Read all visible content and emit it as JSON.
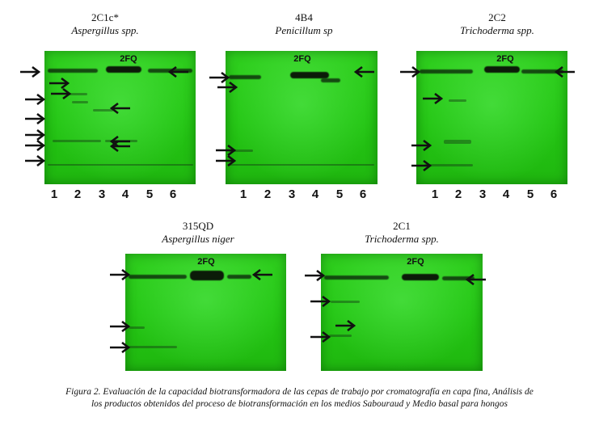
{
  "panels": [
    {
      "code": "2C1c*",
      "organism": "Aspergillus spp.",
      "tag": "2FQ",
      "lanes": [
        "1",
        "2",
        "3",
        "4",
        "5",
        "6"
      ]
    },
    {
      "code": "4B4",
      "organism": "Penicillum sp",
      "tag": "2FQ",
      "lanes": [
        "1",
        "2",
        "3",
        "4",
        "5",
        "6"
      ]
    },
    {
      "code": "2C2",
      "organism": "Trichoderma spp.",
      "tag": "2FQ",
      "lanes": [
        "1",
        "2",
        "3",
        "4",
        "5",
        "6"
      ]
    },
    {
      "code": "315QD",
      "organism": "Aspergillus niger",
      "tag": "2FQ"
    },
    {
      "code": "2C1",
      "organism": "Trichoderma spp.",
      "tag": "2FQ"
    }
  ],
  "caption": {
    "line1": "Figura 2. Evaluación de la capacidad biotransformadora  de las cepas de trabajo por cromatografía en capa fina, Análisis de",
    "line2": "los productos obtenidos del proceso de biotransformación en los medios Sabouraud y Medio basal para hongos"
  }
}
